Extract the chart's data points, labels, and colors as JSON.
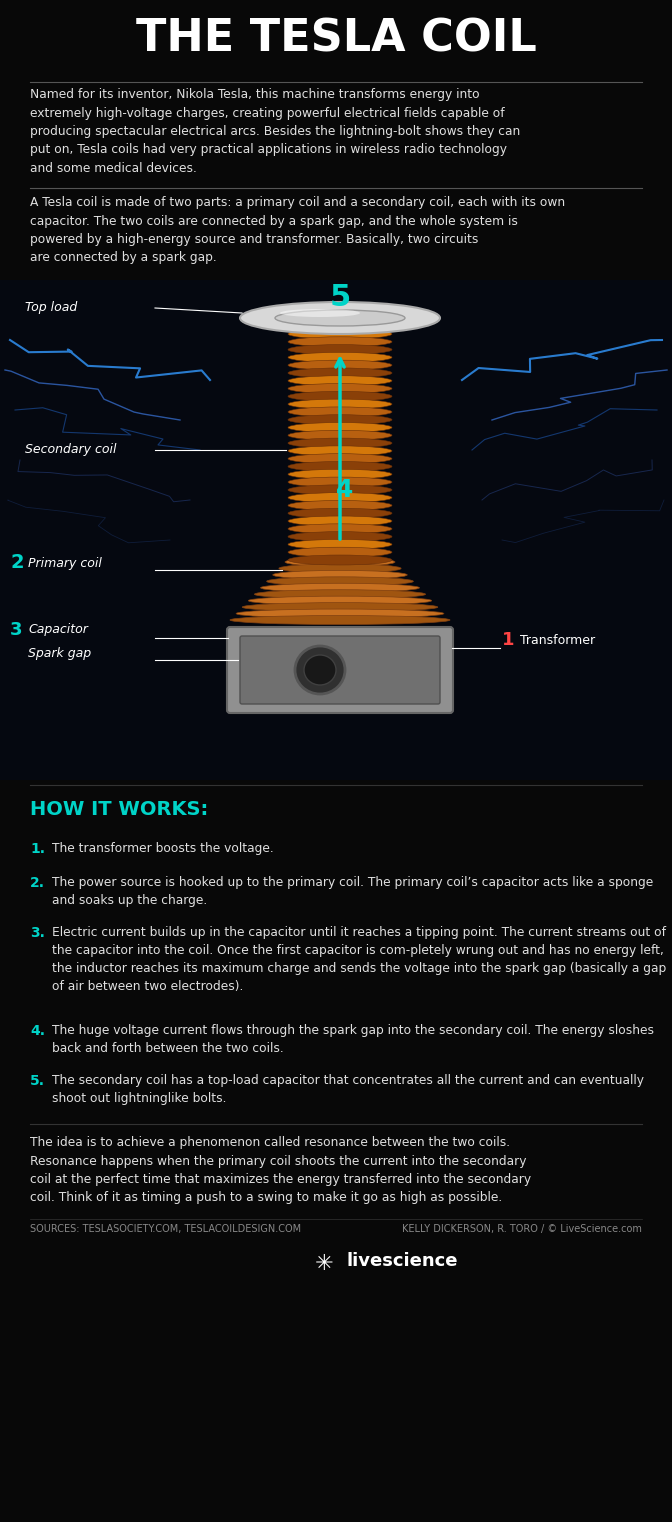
{
  "title": "THE TESLA COIL",
  "bg_color": "#080808",
  "title_color": "#ffffff",
  "cyan_color": "#00d4c8",
  "white_color": "#e0e0e0",
  "gray_color": "#888888",
  "intro_text": "Named for its inventor, Nikola Tesla, this machine transforms energy into\nextremely high-voltage charges, creating powerful electrical fields capable of\nproducing spectacular electrical arcs. Besides the lightning-bolt shows they can\nput on, Tesla coils had very practical applications in wireless radio technology\nand some medical devices.",
  "section2_text_parts": [
    {
      "text": "A ",
      "bold": false,
      "italic": false
    },
    {
      "text": "Tesla coil",
      "bold": true,
      "italic": false
    },
    {
      "text": " is made of two parts: a ",
      "bold": false,
      "italic": false
    },
    {
      "text": "primary coil",
      "bold": false,
      "italic": true
    },
    {
      "text": " and a ",
      "bold": false,
      "italic": false
    },
    {
      "text": "secondary coil",
      "bold": false,
      "italic": true
    },
    {
      "text": ", each with its own\n",
      "bold": false,
      "italic": false
    },
    {
      "text": "capacitor",
      "bold": false,
      "italic": true
    },
    {
      "text": ". The two coils are connected by a ",
      "bold": false,
      "italic": false
    },
    {
      "text": "spark gap",
      "bold": false,
      "italic": true
    },
    {
      "text": ", and the whole system is\npowered by a high-energy source and ",
      "bold": false,
      "italic": false
    },
    {
      "text": "transformer",
      "bold": false,
      "italic": true
    },
    {
      "text": ". Basically, two circuits\nare connected by a spark gap.",
      "bold": false,
      "italic": false
    }
  ],
  "how_it_works_title": "HOW IT WORKS:",
  "steps": [
    {
      "num": "1",
      "text": "The transformer boosts the voltage."
    },
    {
      "num": "2",
      "text": "The power source is hooked up to the primary coil. The primary coil’s capacitor acts like a sponge and soaks up the charge."
    },
    {
      "num": "3",
      "text": "Electric current builds up in the capacitor until it reaches a tipping point. The current streams out of the capacitor into the coil. Once the first capacitor is com-pletely wrung out and has no energy left, the inductor reaches its maximum charge and sends the voltage into the spark gap (basically a gap of air between two electrodes)."
    },
    {
      "num": "4",
      "text": "The huge voltage current flows through the spark gap into the secondary coil. The energy sloshes back and forth between the two coils."
    },
    {
      "num": "5",
      "text": "The secondary coil has a top-load capacitor that concentrates all the current and can eventually shoot out lightninglike bolts."
    }
  ],
  "closing_text": "The idea is to achieve a phenomenon called resonance between the two coils.\nResonance happens when the primary coil shoots the current into the secondary\ncoil at the perfect time that maximizes the energy transferred into the secondary\ncoil. Think of it as timing a push to a swing to make it go as high as possible.",
  "sources_left": "SOURCES: TESLASOCIETY.COM, TESLACOILDESIGN.COM",
  "sources_right": "KELLY DICKERSON, R. TORO / © LiveScience.com",
  "logo_text": "livescience"
}
